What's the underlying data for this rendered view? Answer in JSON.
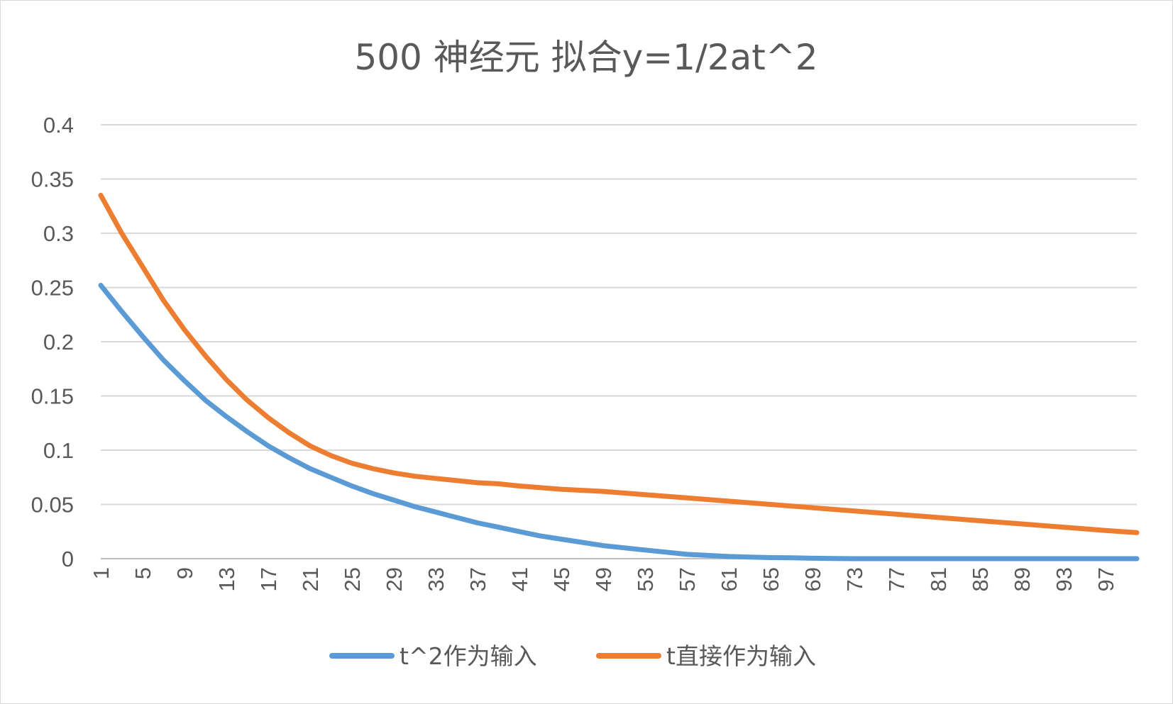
{
  "chart_data": {
    "type": "line",
    "title": "500 神经元 拟合y=1/2at^2",
    "xlabel": "",
    "ylabel": "",
    "x_start": 1,
    "x_end": 100,
    "x_tick_labels": [
      "1",
      "5",
      "9",
      "13",
      "17",
      "21",
      "25",
      "29",
      "33",
      "37",
      "41",
      "45",
      "49",
      "53",
      "57",
      "61",
      "65",
      "69",
      "73",
      "77",
      "81",
      "85",
      "89",
      "93",
      "97"
    ],
    "y_tick_labels": [
      "0",
      "0.05",
      "0.1",
      "0.15",
      "0.2",
      "0.25",
      "0.3",
      "0.35",
      "0.4"
    ],
    "ylim": [
      0,
      0.4
    ],
    "grid": true,
    "legend_position": "bottom",
    "series": [
      {
        "name": "t^2作为输入",
        "color": "#5B9BD5",
        "keypoints": [
          [
            1,
            0.252
          ],
          [
            3,
            0.228
          ],
          [
            5,
            0.205
          ],
          [
            7,
            0.183
          ],
          [
            9,
            0.164
          ],
          [
            11,
            0.146
          ],
          [
            13,
            0.131
          ],
          [
            15,
            0.117
          ],
          [
            17,
            0.104
          ],
          [
            19,
            0.093
          ],
          [
            21,
            0.083
          ],
          [
            23,
            0.075
          ],
          [
            25,
            0.067
          ],
          [
            27,
            0.06
          ],
          [
            29,
            0.054
          ],
          [
            31,
            0.048
          ],
          [
            33,
            0.043
          ],
          [
            35,
            0.038
          ],
          [
            37,
            0.033
          ],
          [
            39,
            0.029
          ],
          [
            41,
            0.025
          ],
          [
            43,
            0.021
          ],
          [
            45,
            0.018
          ],
          [
            47,
            0.015
          ],
          [
            49,
            0.012
          ],
          [
            51,
            0.01
          ],
          [
            53,
            0.008
          ],
          [
            55,
            0.006
          ],
          [
            57,
            0.004
          ],
          [
            59,
            0.003
          ],
          [
            61,
            0.002
          ],
          [
            63,
            0.0015
          ],
          [
            65,
            0.001
          ],
          [
            67,
            0.0008
          ],
          [
            69,
            0.0004
          ],
          [
            71,
            0.0002
          ],
          [
            73,
            0
          ],
          [
            100,
            0
          ]
        ]
      },
      {
        "name": "t直接作为输入",
        "color": "#ED7D31",
        "keypoints": [
          [
            1,
            0.335
          ],
          [
            3,
            0.3
          ],
          [
            5,
            0.269
          ],
          [
            7,
            0.238
          ],
          [
            9,
            0.211
          ],
          [
            11,
            0.187
          ],
          [
            13,
            0.165
          ],
          [
            15,
            0.146
          ],
          [
            17,
            0.13
          ],
          [
            19,
            0.116
          ],
          [
            21,
            0.104
          ],
          [
            23,
            0.095
          ],
          [
            25,
            0.088
          ],
          [
            27,
            0.083
          ],
          [
            29,
            0.079
          ],
          [
            31,
            0.076
          ],
          [
            33,
            0.074
          ],
          [
            35,
            0.072
          ],
          [
            37,
            0.07
          ],
          [
            39,
            0.069
          ],
          [
            41,
            0.067
          ],
          [
            45,
            0.064
          ],
          [
            49,
            0.062
          ],
          [
            53,
            0.059
          ],
          [
            57,
            0.056
          ],
          [
            61,
            0.053
          ],
          [
            65,
            0.05
          ],
          [
            69,
            0.047
          ],
          [
            73,
            0.044
          ],
          [
            77,
            0.041
          ],
          [
            81,
            0.038
          ],
          [
            85,
            0.035
          ],
          [
            89,
            0.032
          ],
          [
            93,
            0.029
          ],
          [
            97,
            0.026
          ],
          [
            100,
            0.024
          ]
        ]
      }
    ]
  }
}
